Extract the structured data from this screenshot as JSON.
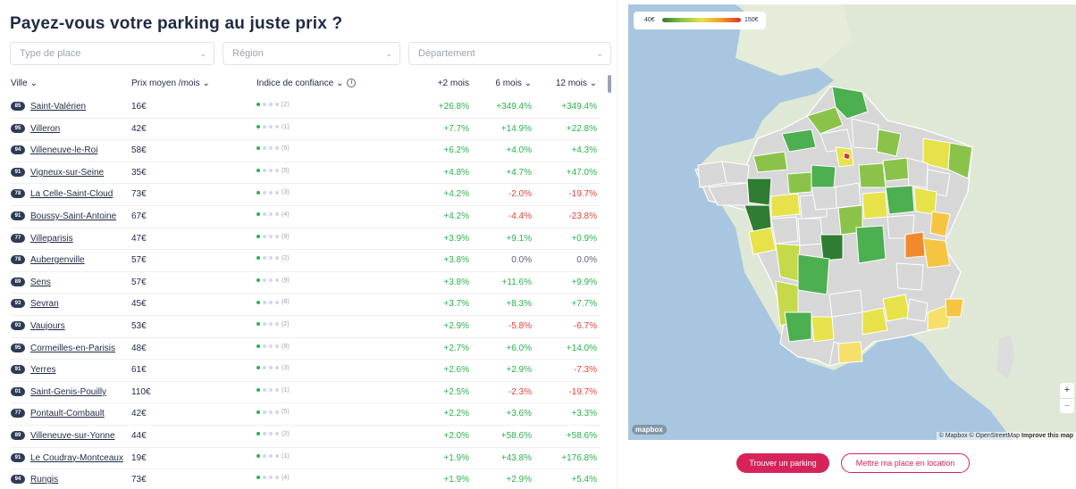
{
  "title": "Payez-vous votre parking au juste prix ?",
  "filters": [
    {
      "placeholder": "Type de place"
    },
    {
      "placeholder": "Région"
    },
    {
      "placeholder": "Département"
    }
  ],
  "table": {
    "headers": {
      "city": "Ville ⌄",
      "price": "Prix moyen /mois ⌄",
      "conf": "Indice de confiance ⌄",
      "m2": "+2 mois",
      "m6": "6 mois ⌄",
      "m12": "12 mois ⌄"
    },
    "rows": [
      {
        "dept": "85",
        "city": "Saint-Valérien",
        "price": "16€",
        "confidence": 1,
        "conf_count": "(2)",
        "m2": "+26.8%",
        "m6": "+349.4%",
        "m12": "+349.4%"
      },
      {
        "dept": "95",
        "city": "Villeron",
        "price": "42€",
        "confidence": 1,
        "conf_count": "(1)",
        "m2": "+7.7%",
        "m6": "+14.9%",
        "m12": "+22.8%"
      },
      {
        "dept": "94",
        "city": "Villeneuve-le-Roi",
        "price": "58€",
        "confidence": 1,
        "conf_count": "(5)",
        "m2": "+6.2%",
        "m6": "+4.0%",
        "m12": "+4.3%"
      },
      {
        "dept": "91",
        "city": "Vigneux-sur-Seine",
        "price": "35€",
        "confidence": 1,
        "conf_count": "(5)",
        "m2": "+4.8%",
        "m6": "+4.7%",
        "m12": "+47.0%"
      },
      {
        "dept": "78",
        "city": "La Celle-Saint-Cloud",
        "price": "73€",
        "confidence": 1,
        "conf_count": "(3)",
        "m2": "+4.2%",
        "m6": "-2.0%",
        "m12": "-19.7%"
      },
      {
        "dept": "91",
        "city": "Boussy-Saint-Antoine",
        "price": "67€",
        "confidence": 1,
        "conf_count": "(4)",
        "m2": "+4.2%",
        "m6": "-4.4%",
        "m12": "-23.8%"
      },
      {
        "dept": "77",
        "city": "Villeparisis",
        "price": "47€",
        "confidence": 1,
        "conf_count": "(9)",
        "m2": "+3.9%",
        "m6": "+9.1%",
        "m12": "+0.9%"
      },
      {
        "dept": "78",
        "city": "Aubergenville",
        "price": "57€",
        "confidence": 1,
        "conf_count": "(2)",
        "m2": "+3.8%",
        "m6": "0.0%",
        "m12": "0.0%"
      },
      {
        "dept": "89",
        "city": "Sens",
        "price": "57€",
        "confidence": 1,
        "conf_count": "(9)",
        "m2": "+3.8%",
        "m6": "+11.6%",
        "m12": "+9.9%"
      },
      {
        "dept": "93",
        "city": "Sevran",
        "price": "45€",
        "confidence": 1,
        "conf_count": "(8)",
        "m2": "+3.7%",
        "m6": "+8.3%",
        "m12": "+7.7%"
      },
      {
        "dept": "93",
        "city": "Vaujours",
        "price": "53€",
        "confidence": 1,
        "conf_count": "(2)",
        "m2": "+2.9%",
        "m6": "-5.8%",
        "m12": "-6.7%"
      },
      {
        "dept": "95",
        "city": "Cormeilles-en-Parisis",
        "price": "48€",
        "confidence": 1,
        "conf_count": "(9)",
        "m2": "+2.7%",
        "m6": "+6.0%",
        "m12": "+14.0%"
      },
      {
        "dept": "91",
        "city": "Yerres",
        "price": "61€",
        "confidence": 1,
        "conf_count": "(3)",
        "m2": "+2.6%",
        "m6": "+2.9%",
        "m12": "-7.3%"
      },
      {
        "dept": "01",
        "city": "Saint-Genis-Pouilly",
        "price": "110€",
        "confidence": 1,
        "conf_count": "(1)",
        "m2": "+2.5%",
        "m6": "-2.3%",
        "m12": "-19.7%"
      },
      {
        "dept": "77",
        "city": "Pontault-Combault",
        "price": "42€",
        "confidence": 1,
        "conf_count": "(5)",
        "m2": "+2.2%",
        "m6": "+3.6%",
        "m12": "+3.3%"
      },
      {
        "dept": "89",
        "city": "Villeneuve-sur-Yonne",
        "price": "44€",
        "confidence": 1,
        "conf_count": "(2)",
        "m2": "+2.0%",
        "m6": "+58.6%",
        "m12": "+58.6%"
      },
      {
        "dept": "91",
        "city": "Le Coudray-Montceaux",
        "price": "19€",
        "confidence": 1,
        "conf_count": "(1)",
        "m2": "+1.9%",
        "m6": "+43.8%",
        "m12": "+176.8%"
      },
      {
        "dept": "94",
        "city": "Rungis",
        "price": "73€",
        "confidence": 1,
        "conf_count": "(4)",
        "m2": "+1.9%",
        "m6": "+2.9%",
        "m12": "+5.4%"
      }
    ]
  },
  "map": {
    "legend_min": "40€",
    "legend_max": "150€",
    "zoom_in": "+",
    "zoom_out": "−",
    "logo": "mapbox",
    "attribution": "© Mapbox © OpenStreetMap",
    "attribution_link": "Improve this map",
    "colors": {
      "sea": "#a8c6df",
      "land": "#dfe8d6",
      "dept_default": "#d7d7d7",
      "dept_border": "#ffffff"
    }
  },
  "buttons": {
    "find": "Trouver un parking",
    "rent": "Mettre ma place en location"
  }
}
